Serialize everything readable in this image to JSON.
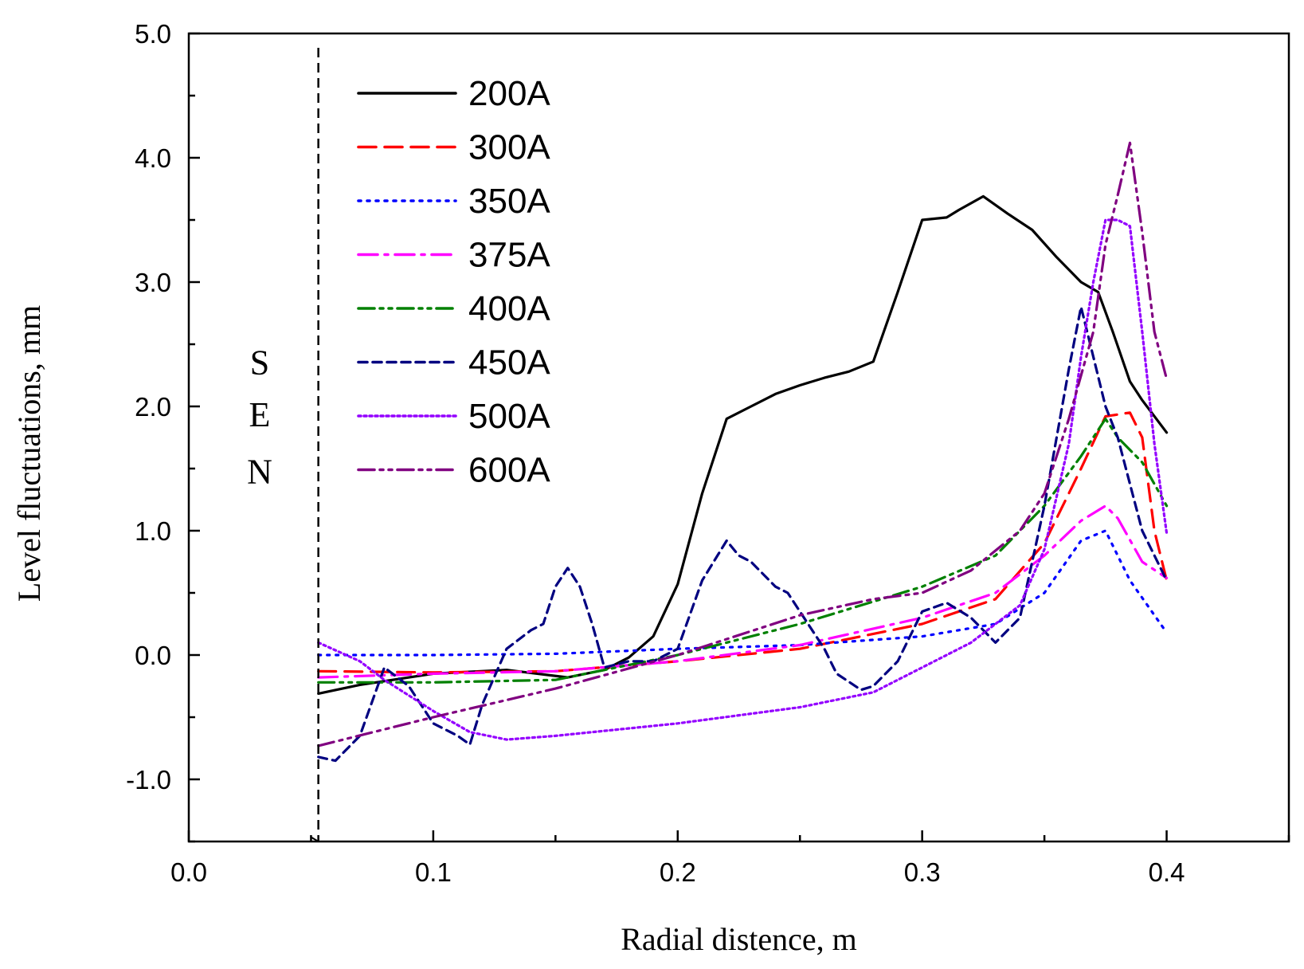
{
  "chart_data": {
    "type": "line",
    "title": "",
    "xlabel": "Radial distence,  m",
    "ylabel": "Level fluctuations,  mm",
    "xlim": [
      0.0,
      0.45
    ],
    "ylim": [
      -1.5,
      5.0
    ],
    "xticks": [
      {
        "value": 0.0,
        "label": "0.0"
      },
      {
        "value": 0.1,
        "label": "0.1"
      },
      {
        "value": 0.2,
        "label": "0.2"
      },
      {
        "value": 0.3,
        "label": "0.3"
      },
      {
        "value": 0.4,
        "label": "0.4"
      }
    ],
    "yticks": [
      {
        "value": -1.0,
        "label": "-1.0"
      },
      {
        "value": 0.0,
        "label": "0.0"
      },
      {
        "value": 1.0,
        "label": "1.0"
      },
      {
        "value": 2.0,
        "label": "2.0"
      },
      {
        "value": 3.0,
        "label": "3.0"
      },
      {
        "value": 4.0,
        "label": "4.0"
      },
      {
        "value": 5.0,
        "label": "5.0"
      }
    ],
    "legend_position": "top-left",
    "annotation": {
      "text": [
        "S",
        "E",
        "N"
      ],
      "x_line": 0.053,
      "label_x": 0.029,
      "label_y": [
        2.35,
        1.93,
        1.47
      ]
    },
    "series": [
      {
        "name": "200A",
        "color": "#000000",
        "dash": "solid",
        "x": [
          0.053,
          0.07,
          0.1,
          0.13,
          0.155,
          0.17,
          0.18,
          0.19,
          0.2,
          0.21,
          0.22,
          0.23,
          0.24,
          0.25,
          0.26,
          0.27,
          0.28,
          0.29,
          0.3,
          0.31,
          0.315,
          0.325,
          0.335,
          0.345,
          0.355,
          0.365,
          0.372,
          0.378,
          0.385,
          0.39,
          0.4
        ],
        "y": [
          -0.31,
          -0.24,
          -0.15,
          -0.12,
          -0.18,
          -0.12,
          -0.02,
          0.15,
          0.57,
          1.3,
          1.9,
          2.0,
          2.1,
          2.17,
          2.23,
          2.28,
          2.36,
          2.92,
          3.5,
          3.52,
          3.58,
          3.69,
          3.55,
          3.42,
          3.2,
          3.0,
          2.92,
          2.6,
          2.2,
          2.05,
          1.79
        ]
      },
      {
        "name": "300A",
        "color": "#ff0000",
        "dash": "longdash",
        "x": [
          0.053,
          0.1,
          0.15,
          0.2,
          0.25,
          0.3,
          0.33,
          0.35,
          0.365,
          0.375,
          0.385,
          0.39,
          0.395,
          0.4
        ],
        "y": [
          -0.13,
          -0.14,
          -0.13,
          -0.05,
          0.05,
          0.25,
          0.45,
          0.9,
          1.5,
          1.92,
          1.95,
          1.75,
          1.0,
          0.6
        ]
      },
      {
        "name": "350A",
        "color": "#0000ff",
        "dash": "dot",
        "x": [
          0.053,
          0.1,
          0.15,
          0.2,
          0.25,
          0.3,
          0.33,
          0.35,
          0.365,
          0.375,
          0.385,
          0.4
        ],
        "y": [
          0.0,
          0.0,
          0.01,
          0.05,
          0.08,
          0.15,
          0.25,
          0.5,
          0.92,
          1.0,
          0.6,
          0.18
        ]
      },
      {
        "name": "375A",
        "color": "#ff00ff",
        "dash": "dashdot",
        "x": [
          0.053,
          0.1,
          0.15,
          0.2,
          0.25,
          0.3,
          0.33,
          0.35,
          0.365,
          0.375,
          0.38,
          0.39,
          0.4
        ],
        "y": [
          -0.18,
          -0.15,
          -0.13,
          -0.05,
          0.08,
          0.3,
          0.5,
          0.8,
          1.08,
          1.2,
          1.1,
          0.75,
          0.62
        ]
      },
      {
        "name": "400A",
        "color": "#008000",
        "dash": "dashdotdot",
        "x": [
          0.053,
          0.1,
          0.15,
          0.2,
          0.25,
          0.3,
          0.33,
          0.35,
          0.365,
          0.375,
          0.38,
          0.39,
          0.4
        ],
        "y": [
          -0.22,
          -0.22,
          -0.2,
          0.0,
          0.25,
          0.55,
          0.8,
          1.2,
          1.6,
          1.9,
          1.75,
          1.55,
          1.2
        ]
      },
      {
        "name": "450A",
        "color": "#000080",
        "dash": "shortdash",
        "x": [
          0.053,
          0.06,
          0.07,
          0.08,
          0.09,
          0.1,
          0.11,
          0.115,
          0.12,
          0.13,
          0.14,
          0.145,
          0.15,
          0.155,
          0.16,
          0.165,
          0.17,
          0.18,
          0.19,
          0.2,
          0.21,
          0.22,
          0.225,
          0.23,
          0.24,
          0.245,
          0.25,
          0.26,
          0.265,
          0.275,
          0.28,
          0.29,
          0.3,
          0.31,
          0.32,
          0.33,
          0.34,
          0.35,
          0.36,
          0.365,
          0.37,
          0.375,
          0.38,
          0.39,
          0.4
        ],
        "y": [
          -0.82,
          -0.85,
          -0.65,
          -0.1,
          -0.25,
          -0.55,
          -0.65,
          -0.72,
          -0.4,
          0.05,
          0.2,
          0.25,
          0.55,
          0.7,
          0.55,
          0.25,
          -0.1,
          -0.05,
          -0.05,
          0.05,
          0.6,
          0.92,
          0.8,
          0.75,
          0.55,
          0.5,
          0.35,
          0.05,
          -0.15,
          -0.28,
          -0.25,
          -0.05,
          0.35,
          0.42,
          0.3,
          0.1,
          0.3,
          1.2,
          2.3,
          2.8,
          2.4,
          2.0,
          1.75,
          1.0,
          0.6
        ]
      },
      {
        "name": "500A",
        "color": "#9400ff",
        "dash": "densedot",
        "x": [
          0.053,
          0.07,
          0.08,
          0.1,
          0.115,
          0.13,
          0.15,
          0.2,
          0.25,
          0.28,
          0.3,
          0.32,
          0.34,
          0.35,
          0.36,
          0.365,
          0.37,
          0.375,
          0.38,
          0.385,
          0.39,
          0.395,
          0.4
        ],
        "y": [
          0.1,
          -0.05,
          -0.2,
          -0.45,
          -0.62,
          -0.68,
          -0.65,
          -0.55,
          -0.42,
          -0.3,
          -0.1,
          0.1,
          0.4,
          0.85,
          1.7,
          2.4,
          3.0,
          3.5,
          3.5,
          3.45,
          2.6,
          1.7,
          0.98
        ]
      },
      {
        "name": "600A",
        "color": "#800080",
        "dash": "dashdotdot",
        "x": [
          0.053,
          0.1,
          0.15,
          0.2,
          0.25,
          0.28,
          0.3,
          0.32,
          0.34,
          0.35,
          0.36,
          0.37,
          0.375,
          0.38,
          0.385,
          0.39,
          0.395,
          0.4
        ],
        "y": [
          -0.73,
          -0.5,
          -0.27,
          0.0,
          0.32,
          0.45,
          0.5,
          0.68,
          1.0,
          1.3,
          1.9,
          2.6,
          3.3,
          3.7,
          4.12,
          3.4,
          2.6,
          2.22
        ]
      }
    ]
  }
}
